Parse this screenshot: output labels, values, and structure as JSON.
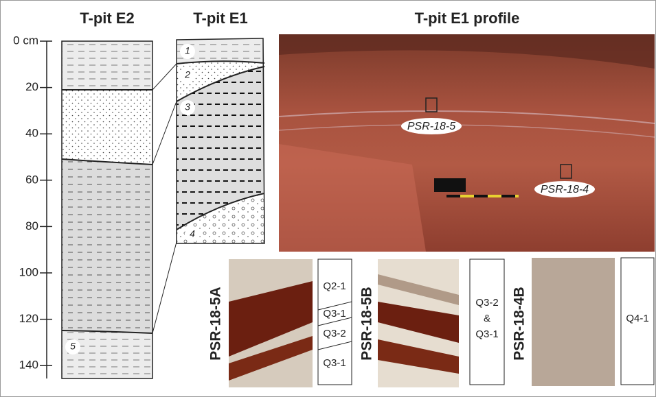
{
  "header": {
    "titles": [
      "T-pit E2",
      "T-pit E1",
      "T-pit E1 profile"
    ]
  },
  "depth_axis": {
    "ticks": [
      {
        "value": 0,
        "label": "0 cm"
      },
      20,
      40,
      60,
      80,
      100,
      120,
      140
    ]
  },
  "e2_layers": [
    "5"
  ],
  "e1_layers": [
    "1",
    "2",
    "3",
    "4"
  ],
  "profile_labels": [
    "PSR-18-5",
    "PSR-18-4"
  ],
  "thin_sections": [
    {
      "label": "PSR-18-5A",
      "units": [
        "Q2-1",
        "Q3-1",
        "Q3-2",
        "Q3-1"
      ]
    },
    {
      "label": "PSR-18-5B",
      "units": [
        "Q3-2",
        "&",
        "Q3-1"
      ]
    },
    {
      "label": "PSR-18-4B",
      "units": [
        "Q4-1"
      ]
    }
  ]
}
